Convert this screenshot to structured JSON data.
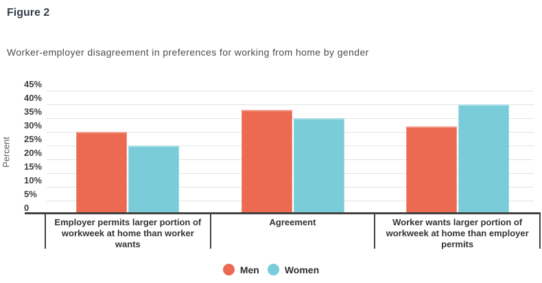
{
  "header": {
    "figure_label": "Figure 2",
    "subtitle": "Worker-employer disagreement in preferences for working from home by gender"
  },
  "chart_data": {
    "type": "bar",
    "title": "Worker-employer disagreement in preferences for working from home by gender",
    "categories": [
      "Employer permits larger portion of workweek at home than worker wants",
      "Agreement",
      "Worker wants larger portion of workweek at home than employer permits"
    ],
    "series": [
      {
        "name": "Men",
        "color": "#EC6A52",
        "values": [
          30,
          38,
          32
        ]
      },
      {
        "name": "Women",
        "color": "#7ACDD8",
        "values": [
          25,
          35,
          40
        ]
      }
    ],
    "xlabel": "",
    "ylabel": "Percent",
    "ylim": [
      0,
      45
    ],
    "ytick_step": 5,
    "ytick_labels": [
      "0",
      "5%",
      "10%",
      "15%",
      "20%",
      "25%",
      "30%",
      "35%",
      "40%",
      "45%"
    ],
    "grid": true,
    "legend_position": "bottom"
  },
  "colors": {
    "men": "#EC6A52",
    "women": "#7ACDD8",
    "gridline": "#e1e1e1",
    "axis": "#414141",
    "title_text": "#333e48",
    "subtitle_text": "#4c4c4c",
    "tick_text": "#3d3d3d"
  }
}
